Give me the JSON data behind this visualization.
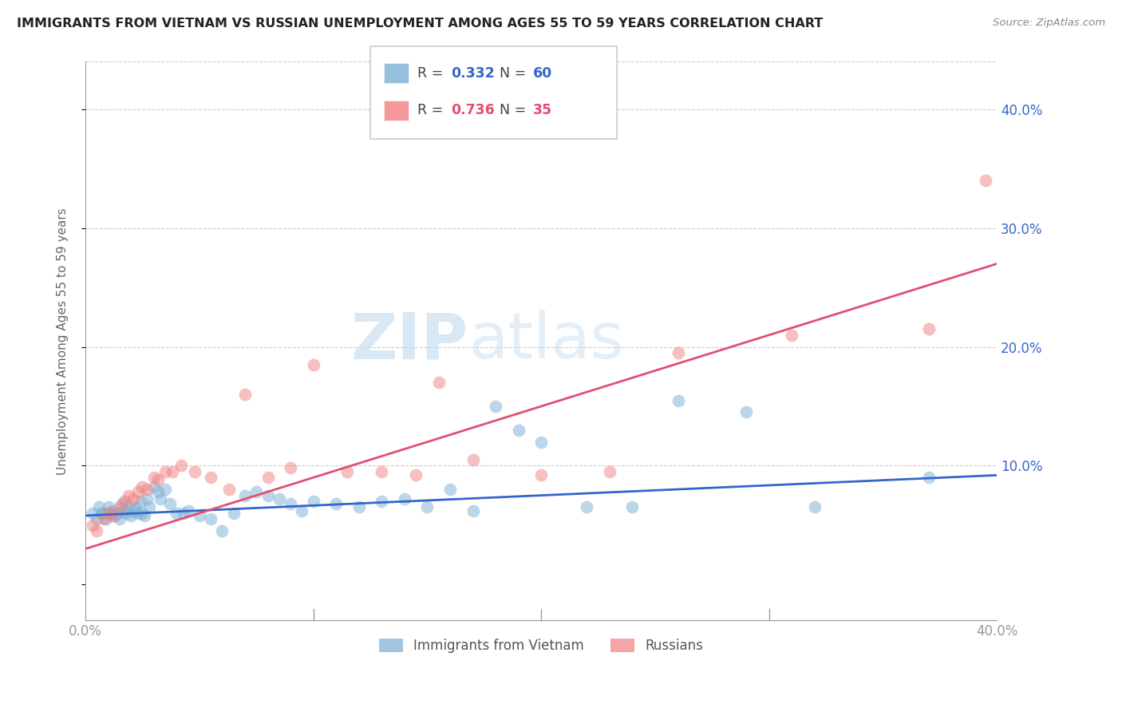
{
  "title": "IMMIGRANTS FROM VIETNAM VS RUSSIAN UNEMPLOYMENT AMONG AGES 55 TO 59 YEARS CORRELATION CHART",
  "source": "Source: ZipAtlas.com",
  "ylabel": "Unemployment Among Ages 55 to 59 years",
  "xlim": [
    0.0,
    0.4
  ],
  "ylim": [
    -0.03,
    0.44
  ],
  "yticks": [
    0.0,
    0.1,
    0.2,
    0.3,
    0.4
  ],
  "ytick_labels_right": [
    "",
    "10.0%",
    "20.0%",
    "30.0%",
    "40.0%"
  ],
  "xticks": [
    0.0,
    0.1,
    0.2,
    0.3,
    0.4
  ],
  "xtick_labels": [
    "0.0%",
    "",
    "",
    "",
    "40.0%"
  ],
  "blue_color": "#7bafd4",
  "pink_color": "#f08080",
  "blue_line_color": "#3366cc",
  "pink_line_color": "#e05070",
  "legend_blue_r": "0.332",
  "legend_blue_n": "60",
  "legend_pink_r": "0.736",
  "legend_pink_n": "35",
  "blue_scatter_x": [
    0.003,
    0.005,
    0.006,
    0.007,
    0.008,
    0.009,
    0.01,
    0.011,
    0.012,
    0.013,
    0.014,
    0.015,
    0.016,
    0.017,
    0.018,
    0.019,
    0.02,
    0.021,
    0.022,
    0.023,
    0.024,
    0.025,
    0.026,
    0.027,
    0.028,
    0.03,
    0.032,
    0.033,
    0.035,
    0.037,
    0.04,
    0.043,
    0.045,
    0.05,
    0.055,
    0.06,
    0.065,
    0.07,
    0.075,
    0.08,
    0.085,
    0.09,
    0.095,
    0.1,
    0.11,
    0.12,
    0.13,
    0.14,
    0.15,
    0.16,
    0.17,
    0.18,
    0.19,
    0.2,
    0.22,
    0.24,
    0.26,
    0.29,
    0.32,
    0.37
  ],
  "blue_scatter_y": [
    0.06,
    0.055,
    0.065,
    0.06,
    0.06,
    0.055,
    0.065,
    0.06,
    0.062,
    0.058,
    0.06,
    0.055,
    0.068,
    0.062,
    0.06,
    0.065,
    0.058,
    0.062,
    0.065,
    0.06,
    0.07,
    0.06,
    0.058,
    0.072,
    0.065,
    0.082,
    0.078,
    0.072,
    0.08,
    0.068,
    0.06,
    0.06,
    0.062,
    0.058,
    0.055,
    0.045,
    0.06,
    0.075,
    0.078,
    0.075,
    0.072,
    0.068,
    0.062,
    0.07,
    0.068,
    0.065,
    0.07,
    0.072,
    0.065,
    0.08,
    0.062,
    0.15,
    0.13,
    0.12,
    0.065,
    0.065,
    0.155,
    0.145,
    0.065,
    0.09
  ],
  "pink_scatter_x": [
    0.003,
    0.005,
    0.008,
    0.01,
    0.012,
    0.015,
    0.017,
    0.019,
    0.021,
    0.023,
    0.025,
    0.027,
    0.03,
    0.032,
    0.035,
    0.038,
    0.042,
    0.048,
    0.055,
    0.063,
    0.07,
    0.08,
    0.09,
    0.1,
    0.115,
    0.13,
    0.145,
    0.155,
    0.17,
    0.2,
    0.23,
    0.26,
    0.31,
    0.37,
    0.395
  ],
  "pink_scatter_y": [
    0.05,
    0.045,
    0.055,
    0.06,
    0.058,
    0.065,
    0.07,
    0.075,
    0.072,
    0.078,
    0.082,
    0.08,
    0.09,
    0.088,
    0.095,
    0.095,
    0.1,
    0.095,
    0.09,
    0.08,
    0.16,
    0.09,
    0.098,
    0.185,
    0.095,
    0.095,
    0.092,
    0.17,
    0.105,
    0.092,
    0.095,
    0.195,
    0.21,
    0.215,
    0.34
  ],
  "blue_line_x": [
    0.0,
    0.4
  ],
  "blue_line_y": [
    0.058,
    0.092
  ],
  "pink_line_x": [
    0.0,
    0.4
  ],
  "pink_line_y": [
    0.03,
    0.27
  ],
  "watermark_part1": "ZIP",
  "watermark_part2": "atlas",
  "background_color": "#ffffff",
  "title_fontsize": 11.5,
  "grid_color": "#cccccc",
  "tick_color": "#999999"
}
